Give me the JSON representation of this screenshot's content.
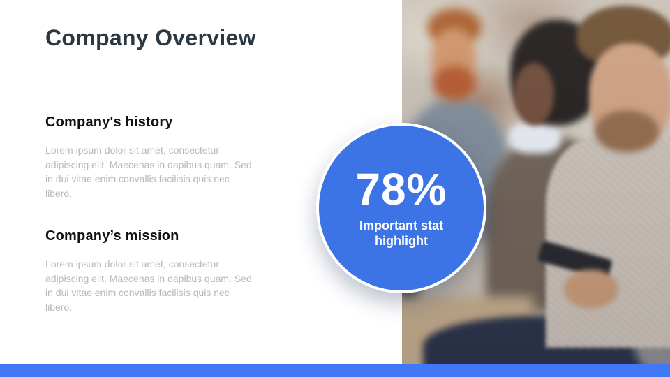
{
  "slide": {
    "title": "Company Overview",
    "sections": [
      {
        "heading": "Company's history",
        "body": "Lorem ipsum dolor sit amet, consectetur adipiscing elit. Maecenas in dapibus quam. Sed in dui vitae enim convallis facilisis quis nec libero."
      },
      {
        "heading": "Company’s mission",
        "body": "Lorem ipsum dolor sit amet, consectetur adipiscing elit. Maecenas in dapibus quam. Sed in dui vitae enim convallis facilisis quis nec libero."
      }
    ],
    "stat": {
      "value": "78%",
      "label": "Important stat highlight"
    },
    "photo_alt": "Group of business people seated in a row against a concrete wall; man looking at phone in foreground",
    "colors": {
      "title_text": "#2b3842",
      "heading_text": "#121212",
      "body_text": "#b8b8b8",
      "stat_circle_blue": "#3c74e6",
      "bottom_bar_blue": "#4078f7"
    }
  }
}
